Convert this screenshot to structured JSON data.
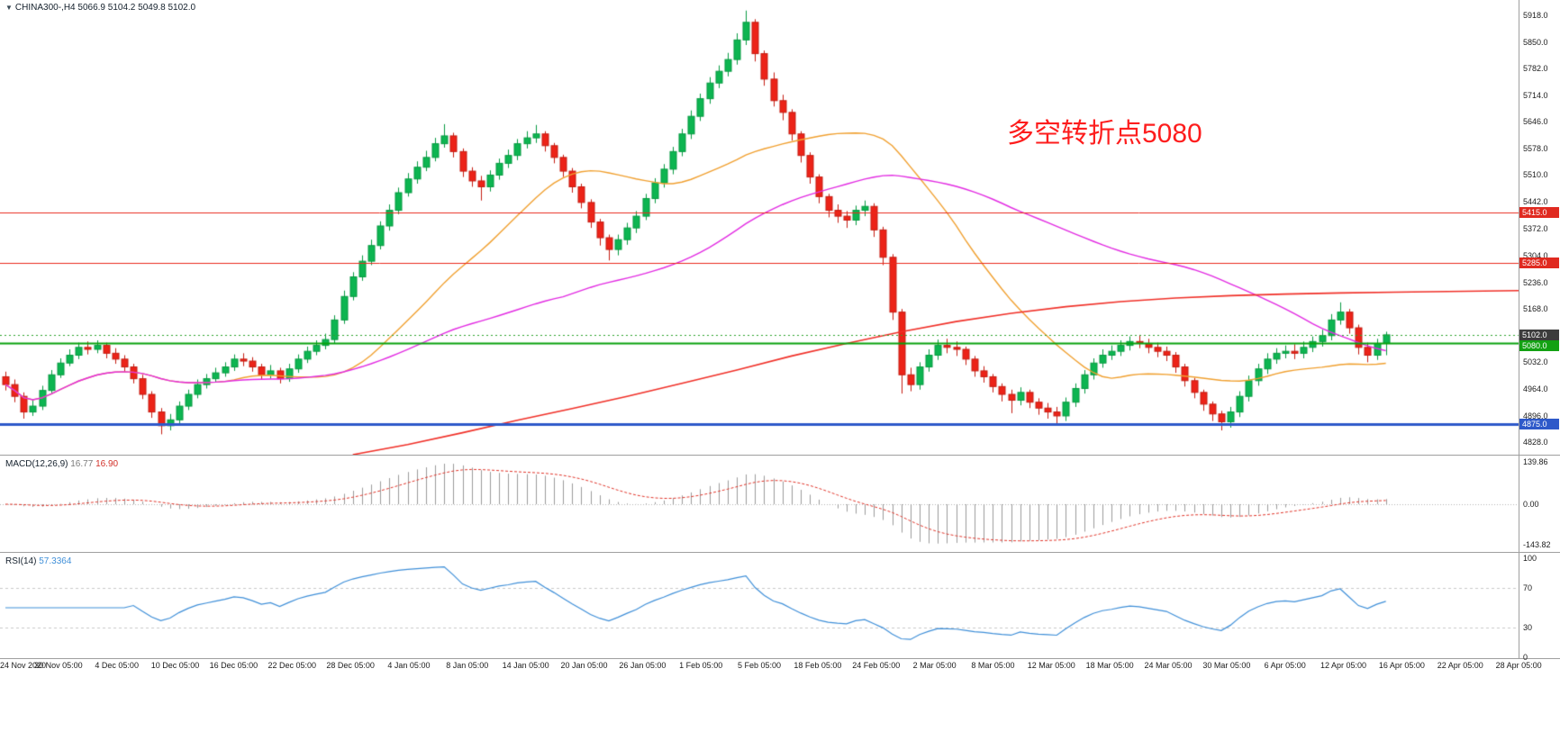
{
  "header": {
    "marker": "▼",
    "symbol": "CHINA300-,H4",
    "ohlc": "5066.9 5104.2 5049.8 5102.0"
  },
  "annotation": {
    "text": "多空转折点5080",
    "color": "#fd1d1d"
  },
  "indicators": {
    "macd": {
      "name": "MACD(12,26,9)",
      "value_main": "16.77",
      "value_signal": "16.90",
      "axis_labels": [
        "139.86",
        "0.00",
        "-143.82"
      ],
      "histogram_color": "#9b9b9b",
      "signal_color": "#e03328"
    },
    "rsi": {
      "name": "RSI(14)",
      "value": "57.3364",
      "axis_labels": [
        "100",
        "70",
        "30",
        "0"
      ],
      "levels": [
        70,
        30
      ],
      "line_color": "#3f8fd8"
    }
  },
  "chart_data": {
    "type": "candlestick",
    "symbol": "CHINA300-",
    "timeframe": "H4",
    "title": "CHINA300- H4 candlestick chart with MACD and RSI",
    "up_color": "#0db551",
    "down_color": "#ec2318",
    "y_range": [
      4796,
      5957
    ],
    "last_price": 5102.0,
    "y_ticks": [
      {
        "text": "5918.0",
        "value": 5918
      },
      {
        "text": "5850.0",
        "value": 5850
      },
      {
        "text": "5782.0",
        "value": 5782
      },
      {
        "text": "5714.0",
        "value": 5714
      },
      {
        "text": "5646.0",
        "value": 5646
      },
      {
        "text": "5578.0",
        "value": 5578
      },
      {
        "text": "5510.0",
        "value": 5510
      },
      {
        "text": "5442.0",
        "value": 5442
      },
      {
        "text": "5372.0",
        "value": 5372
      },
      {
        "text": "5304.0",
        "value": 5304
      },
      {
        "text": "5236.0",
        "value": 5236
      },
      {
        "text": "5168.0",
        "value": 5168
      },
      {
        "text": "5032.0",
        "value": 5032
      },
      {
        "text": "4964.0",
        "value": 4964
      },
      {
        "text": "4896.0",
        "value": 4896
      },
      {
        "text": "4828.0",
        "value": 4828
      }
    ],
    "price_tags": [
      {
        "name": "resistance-5415",
        "label": "5415.0",
        "value": 5415,
        "bg": "#e02a20"
      },
      {
        "name": "resistance-5285",
        "label": "5285.0",
        "value": 5285,
        "bg": "#e02a20"
      },
      {
        "name": "last-price",
        "label": "5102.0",
        "value": 5102,
        "bg": "#3c3c3c"
      },
      {
        "name": "pivot-5080",
        "label": "5080.0",
        "value": 5080,
        "bg": "#13a113"
      },
      {
        "name": "support-4875",
        "label": "4875.0",
        "value": 4875,
        "bg": "#2e59c9"
      }
    ],
    "x_labels": [
      "24 Nov 2020",
      "30 Nov 05:00",
      "4 Dec 05:00",
      "10 Dec 05:00",
      "16 Dec 05:00",
      "22 Dec 05:00",
      "28 Dec 05:00",
      "4 Jan 05:00",
      "8 Jan 05:00",
      "14 Jan 05:00",
      "20 Jan 05:00",
      "26 Jan 05:00",
      "1 Feb 05:00",
      "5 Feb 05:00",
      "18 Feb 05:00",
      "24 Feb 05:00",
      "2 Mar 05:00",
      "8 Mar 05:00",
      "12 Mar 05:00",
      "18 Mar 05:00",
      "24 Mar 05:00",
      "30 Mar 05:00",
      "6 Apr 05:00",
      "12 Apr 05:00",
      "16 Apr 05:00",
      "22 Apr 05:00",
      "28 Apr 05:00"
    ],
    "overlays": {
      "ma_fast": {
        "type": "sma",
        "period": 24,
        "color": "#f0a030"
      },
      "ma_mid": {
        "type": "sma",
        "period": 62,
        "color": "#e22ce2"
      },
      "ma_slow": {
        "color": "#f03028",
        "keypoints": [
          [
            38,
            4796
          ],
          [
            44,
            4822
          ],
          [
            50,
            4852
          ],
          [
            56,
            4884
          ],
          [
            62,
            4914
          ],
          [
            68,
            4945
          ],
          [
            74,
            4978
          ],
          [
            80,
            5012
          ],
          [
            86,
            5048
          ],
          [
            92,
            5080
          ],
          [
            98,
            5110
          ],
          [
            104,
            5136
          ],
          [
            110,
            5157
          ],
          [
            116,
            5174
          ],
          [
            122,
            5187
          ],
          [
            128,
            5196
          ],
          [
            134,
            5202
          ],
          [
            140,
            5206
          ],
          [
            146,
            5209
          ],
          [
            152,
            5211
          ],
          [
            166,
            5215
          ]
        ]
      },
      "horizontal_lines": [
        {
          "value": 5415,
          "color": "#ea2a1c",
          "width": 1,
          "dash": []
        },
        {
          "value": 5285,
          "color": "#ea2a1c",
          "width": 1,
          "dash": []
        },
        {
          "value": 5102,
          "color": "#2ba32b",
          "width": 1,
          "dash": [
            2,
            3
          ]
        },
        {
          "value": 5080,
          "color": "#07a10c",
          "width": 2,
          "dash": []
        },
        {
          "value": 4875,
          "color": "#2e59c9",
          "width": 3,
          "dash": []
        }
      ]
    },
    "ohlc": [
      [
        4995,
        5008,
        4960,
        4975
      ],
      [
        4975,
        4988,
        4930,
        4945
      ],
      [
        4945,
        4955,
        4888,
        4905
      ],
      [
        4905,
        4938,
        4895,
        4920
      ],
      [
        4920,
        4972,
        4910,
        4960
      ],
      [
        4960,
        5012,
        4950,
        5000
      ],
      [
        5000,
        5042,
        4992,
        5030
      ],
      [
        5030,
        5065,
        5022,
        5050
      ],
      [
        5050,
        5082,
        5040,
        5070
      ],
      [
        5070,
        5085,
        5052,
        5065
      ],
      [
        5065,
        5088,
        5055,
        5075
      ],
      [
        5075,
        5082,
        5042,
        5055
      ],
      [
        5055,
        5068,
        5028,
        5040
      ],
      [
        5040,
        5050,
        5008,
        5020
      ],
      [
        5020,
        5028,
        4978,
        4990
      ],
      [
        4990,
        5000,
        4938,
        4950
      ],
      [
        4950,
        4958,
        4890,
        4905
      ],
      [
        4905,
        4915,
        4848,
        4870
      ],
      [
        4870,
        4900,
        4858,
        4885
      ],
      [
        4885,
        4932,
        4875,
        4920
      ],
      [
        4920,
        4962,
        4910,
        4950
      ],
      [
        4950,
        4988,
        4940,
        4975
      ],
      [
        4975,
        5002,
        4965,
        4990
      ],
      [
        4990,
        5018,
        4980,
        5005
      ],
      [
        5005,
        5032,
        4995,
        5020
      ],
      [
        5020,
        5052,
        5010,
        5040
      ],
      [
        5040,
        5055,
        5022,
        5035
      ],
      [
        5035,
        5045,
        5008,
        5020
      ],
      [
        5020,
        5028,
        4988,
        5000
      ],
      [
        5000,
        5025,
        4990,
        5010
      ],
      [
        5010,
        5018,
        4978,
        4990
      ],
      [
        4990,
        5028,
        4982,
        5015
      ],
      [
        5015,
        5052,
        5005,
        5040
      ],
      [
        5040,
        5072,
        5030,
        5060
      ],
      [
        5060,
        5088,
        5050,
        5075
      ],
      [
        5075,
        5105,
        5065,
        5090
      ],
      [
        5090,
        5152,
        5080,
        5140
      ],
      [
        5140,
        5215,
        5130,
        5200
      ],
      [
        5200,
        5262,
        5190,
        5250
      ],
      [
        5250,
        5305,
        5240,
        5290
      ],
      [
        5290,
        5345,
        5280,
        5330
      ],
      [
        5330,
        5392,
        5320,
        5380
      ],
      [
        5380,
        5435,
        5368,
        5420
      ],
      [
        5420,
        5478,
        5410,
        5465
      ],
      [
        5465,
        5515,
        5455,
        5500
      ],
      [
        5500,
        5545,
        5488,
        5530
      ],
      [
        5530,
        5572,
        5520,
        5555
      ],
      [
        5555,
        5605,
        5545,
        5590
      ],
      [
        5590,
        5640,
        5580,
        5610
      ],
      [
        5610,
        5618,
        5555,
        5570
      ],
      [
        5570,
        5578,
        5505,
        5520
      ],
      [
        5520,
        5530,
        5480,
        5495
      ],
      [
        5495,
        5508,
        5445,
        5480
      ],
      [
        5480,
        5522,
        5468,
        5510
      ],
      [
        5510,
        5552,
        5498,
        5540
      ],
      [
        5540,
        5575,
        5528,
        5560
      ],
      [
        5560,
        5602,
        5548,
        5590
      ],
      [
        5590,
        5622,
        5578,
        5605
      ],
      [
        5605,
        5638,
        5592,
        5615
      ],
      [
        5615,
        5622,
        5570,
        5585
      ],
      [
        5585,
        5592,
        5540,
        5555
      ],
      [
        5555,
        5562,
        5505,
        5520
      ],
      [
        5520,
        5528,
        5465,
        5480
      ],
      [
        5480,
        5488,
        5425,
        5440
      ],
      [
        5440,
        5448,
        5375,
        5390
      ],
      [
        5390,
        5398,
        5330,
        5350
      ],
      [
        5350,
        5358,
        5292,
        5320
      ],
      [
        5320,
        5358,
        5305,
        5345
      ],
      [
        5345,
        5388,
        5332,
        5375
      ],
      [
        5375,
        5418,
        5362,
        5405
      ],
      [
        5405,
        5462,
        5395,
        5450
      ],
      [
        5450,
        5502,
        5438,
        5490
      ],
      [
        5490,
        5538,
        5478,
        5525
      ],
      [
        5525,
        5582,
        5512,
        5570
      ],
      [
        5570,
        5628,
        5558,
        5615
      ],
      [
        5615,
        5675,
        5602,
        5660
      ],
      [
        5660,
        5718,
        5648,
        5705
      ],
      [
        5705,
        5760,
        5692,
        5745
      ],
      [
        5745,
        5790,
        5732,
        5775
      ],
      [
        5775,
        5822,
        5762,
        5805
      ],
      [
        5805,
        5872,
        5792,
        5855
      ],
      [
        5855,
        5930,
        5842,
        5900
      ],
      [
        5900,
        5908,
        5800,
        5820
      ],
      [
        5820,
        5828,
        5738,
        5755
      ],
      [
        5755,
        5772,
        5685,
        5700
      ],
      [
        5700,
        5715,
        5650,
        5670
      ],
      [
        5670,
        5678,
        5598,
        5615
      ],
      [
        5615,
        5622,
        5542,
        5560
      ],
      [
        5560,
        5568,
        5488,
        5505
      ],
      [
        5505,
        5512,
        5438,
        5455
      ],
      [
        5455,
        5462,
        5402,
        5420
      ],
      [
        5420,
        5435,
        5388,
        5405
      ],
      [
        5405,
        5418,
        5375,
        5395
      ],
      [
        5395,
        5432,
        5382,
        5420
      ],
      [
        5420,
        5445,
        5405,
        5430
      ],
      [
        5430,
        5438,
        5352,
        5370
      ],
      [
        5370,
        5378,
        5280,
        5300
      ],
      [
        5300,
        5308,
        5140,
        5160
      ],
      [
        5160,
        5168,
        4952,
        5000
      ],
      [
        5000,
        5018,
        4958,
        4975
      ],
      [
        4975,
        5032,
        4962,
        5020
      ],
      [
        5020,
        5065,
        5008,
        5050
      ],
      [
        5050,
        5090,
        5038,
        5075
      ],
      [
        5075,
        5092,
        5055,
        5070
      ],
      [
        5070,
        5085,
        5048,
        5065
      ],
      [
        5065,
        5072,
        5025,
        5040
      ],
      [
        5040,
        5048,
        4995,
        5010
      ],
      [
        5010,
        5022,
        4980,
        4995
      ],
      [
        4995,
        5002,
        4955,
        4970
      ],
      [
        4970,
        4978,
        4932,
        4950
      ],
      [
        4950,
        4962,
        4902,
        4935
      ],
      [
        4935,
        4968,
        4922,
        4955
      ],
      [
        4955,
        4962,
        4915,
        4930
      ],
      [
        4930,
        4940,
        4898,
        4915
      ],
      [
        4915,
        4928,
        4888,
        4905
      ],
      [
        4905,
        4918,
        4876,
        4895
      ],
      [
        4895,
        4942,
        4882,
        4930
      ],
      [
        4930,
        4978,
        4918,
        4965
      ],
      [
        4965,
        5012,
        4952,
        5000
      ],
      [
        5000,
        5042,
        4988,
        5030
      ],
      [
        5030,
        5065,
        5018,
        5050
      ],
      [
        5050,
        5075,
        5038,
        5060
      ],
      [
        5060,
        5088,
        5048,
        5075
      ],
      [
        5075,
        5098,
        5062,
        5085
      ],
      [
        5085,
        5102,
        5068,
        5080
      ],
      [
        5080,
        5092,
        5055,
        5070
      ],
      [
        5070,
        5082,
        5045,
        5060
      ],
      [
        5060,
        5072,
        5035,
        5050
      ],
      [
        5050,
        5058,
        5005,
        5020
      ],
      [
        5020,
        5028,
        4970,
        4985
      ],
      [
        4985,
        4992,
        4940,
        4955
      ],
      [
        4955,
        4962,
        4908,
        4925
      ],
      [
        4925,
        4932,
        4882,
        4900
      ],
      [
        4900,
        4908,
        4858,
        4880
      ],
      [
        4880,
        4918,
        4865,
        4905
      ],
      [
        4905,
        4958,
        4892,
        4945
      ],
      [
        4945,
        4998,
        4932,
        4985
      ],
      [
        4985,
        5028,
        4972,
        5015
      ],
      [
        5015,
        5055,
        5002,
        5040
      ],
      [
        5040,
        5068,
        5028,
        5055
      ],
      [
        5055,
        5075,
        5042,
        5060
      ],
      [
        5060,
        5078,
        5040,
        5055
      ],
      [
        5055,
        5085,
        5042,
        5070
      ],
      [
        5070,
        5098,
        5058,
        5085
      ],
      [
        5085,
        5115,
        5072,
        5100
      ],
      [
        5100,
        5155,
        5088,
        5140
      ],
      [
        5140,
        5185,
        5128,
        5160
      ],
      [
        5160,
        5168,
        5105,
        5120
      ],
      [
        5120,
        5128,
        5052,
        5070
      ],
      [
        5070,
        5082,
        5032,
        5050
      ],
      [
        5050,
        5092,
        5038,
        5080
      ],
      [
        5080,
        5110,
        5050,
        5102
      ]
    ]
  }
}
